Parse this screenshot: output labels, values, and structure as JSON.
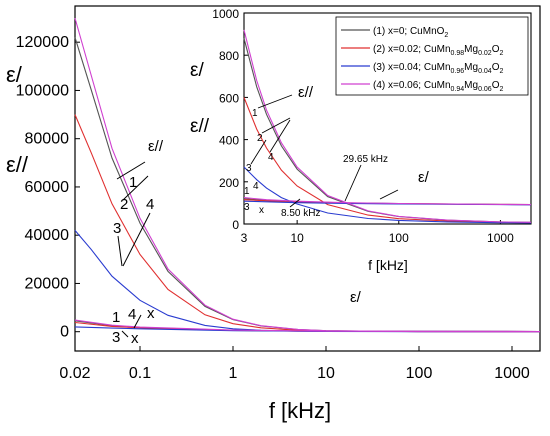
{
  "chart_data": [
    {
      "type": "line",
      "scale": {
        "x": "log",
        "y": "linear"
      },
      "xlabel": "f [kHz]",
      "ylabel_top": "ε/",
      "ylabel_bottom": "ε//",
      "xlim": [
        0.02,
        2000
      ],
      "ylim": [
        -8000,
        135000
      ],
      "xticks": [
        0.02,
        0.1,
        1,
        10,
        100,
        1000
      ],
      "xtick_labels": [
        "0.02",
        "0.1",
        "1",
        "10",
        "100",
        "1000"
      ],
      "yticks": [
        0,
        20000,
        40000,
        60000,
        80000,
        100000,
        120000
      ],
      "ytick_labels": [
        "0",
        "20000",
        "40000",
        "60000",
        "80000",
        "100000",
        "120000"
      ],
      "series": [
        {
          "name": "(1) x=0; CuMnO2",
          "color": "#555555",
          "eps2": {
            "x": [
              0.02,
              0.03,
              0.05,
              0.1,
              0.2,
              0.5,
              1,
              2,
              5,
              10,
              100,
              2000
            ],
            "y": [
              122000,
              100000,
              72000,
              45000,
              25000,
              10500,
              5000,
              2400,
              900,
              400,
              40,
              0
            ]
          },
          "eps1": {
            "x": [
              0.02,
              0.05,
              0.1,
              1,
              10,
              2000
            ],
            "y": [
              4500,
              2500,
              1800,
              600,
              200,
              100
            ]
          }
        },
        {
          "name": "(2) x=0.02; CuMn0.98Mg0.02O2",
          "color": "#e03030",
          "eps2": {
            "x": [
              0.02,
              0.03,
              0.05,
              0.1,
              0.2,
              0.5,
              1,
              2,
              5,
              10,
              100,
              2000
            ],
            "y": [
              90000,
              74000,
              53000,
              32000,
              17500,
              7000,
              3300,
              1600,
              600,
              280,
              30,
              0
            ]
          },
          "eps1": {
            "x": [
              0.02,
              0.05,
              0.1,
              1,
              10,
              2000
            ],
            "y": [
              3800,
              2200,
              1600,
              500,
              180,
              100
            ]
          }
        },
        {
          "name": "(3) x=0.04; CuMn0.96Mg0.04O2",
          "color": "#2a3cd0",
          "eps2": {
            "x": [
              0.02,
              0.03,
              0.05,
              0.1,
              0.2,
              0.5,
              1,
              2,
              5,
              10,
              100,
              2000
            ],
            "y": [
              42000,
              34000,
              23000,
              13000,
              6800,
              2600,
              1200,
              560,
              220,
              110,
              15,
              0
            ]
          },
          "eps1": {
            "x": [
              0.02,
              0.05,
              0.1,
              1,
              10,
              2000
            ],
            "y": [
              2000,
              1500,
              1200,
              400,
              150,
              100
            ]
          }
        },
        {
          "name": "(4) x=0.06; CuMn0.94Mg0.06O2",
          "color": "#d040d0",
          "eps2": {
            "x": [
              0.02,
              0.03,
              0.05,
              0.1,
              0.2,
              0.5,
              1,
              2,
              5,
              10,
              100,
              2000
            ],
            "y": [
              130000,
              106000,
              76000,
              47000,
              26000,
              11000,
              5200,
              2500,
              950,
              420,
              45,
              0
            ]
          },
          "eps1": {
            "x": [
              0.02,
              0.05,
              0.1,
              1,
              10,
              2000
            ],
            "y": [
              4800,
              2700,
              1900,
              650,
              220,
              100
            ]
          }
        }
      ],
      "annotations": {
        "eps2_curve_label": "ε//",
        "eps1_curve_label": "ε/",
        "eps2_numbers": [
          "1",
          "2",
          "3",
          "4"
        ],
        "eps1_numbers": [
          "1",
          "3",
          "4"
        ],
        "x_marker": "x"
      }
    },
    {
      "type": "line",
      "role": "inset",
      "scale": {
        "x": "log",
        "y": "linear"
      },
      "xlabel": "f [kHz]",
      "ylabel_top": "ε/",
      "ylabel_bottom": "ε//",
      "xlim": [
        3,
        2000
      ],
      "ylim": [
        0,
        1000
      ],
      "xticks": [
        3,
        10,
        100,
        1000
      ],
      "xtick_labels": [
        "3",
        "10",
        "100",
        "1000"
      ],
      "yticks": [
        0,
        200,
        400,
        600,
        800,
        1000
      ],
      "ytick_labels": [
        "0",
        "200",
        "400",
        "600",
        "800",
        "1000"
      ],
      "series": [
        {
          "name": "(1) x=0; CuMnO2",
          "color": "#555555",
          "eps2": {
            "x": [
              3,
              4,
              5,
              7,
              10,
              20,
              50,
              100,
              300,
              1000,
              2000
            ],
            "y": [
              880,
              650,
              520,
              370,
              260,
              130,
              60,
              35,
              18,
              10,
              8
            ]
          },
          "eps1": {
            "x": [
              3,
              5,
              10,
              30,
              100,
              1000,
              2000
            ],
            "y": [
              120,
              112,
              106,
              100,
              97,
              93,
              92
            ]
          }
        },
        {
          "name": "(2) x=0.02; CuMn0.98Mg0.02O2",
          "color": "#e03030",
          "eps2": {
            "x": [
              3,
              4,
              5,
              7,
              10,
              20,
              50,
              100,
              300,
              1000,
              2000
            ],
            "y": [
              600,
              450,
              360,
              255,
              180,
              92,
              42,
              25,
              14,
              8,
              6
            ]
          },
          "eps1": {
            "x": [
              3,
              5,
              10,
              30,
              100,
              1000,
              2000
            ],
            "y": [
              115,
              110,
              104,
              99,
              96,
              93,
              92
            ]
          }
        },
        {
          "name": "(3) x=0.04; CuMn0.96Mg0.04O2",
          "color": "#2a3cd0",
          "eps2": {
            "x": [
              3,
              4,
              5,
              7,
              10,
              20,
              50,
              100,
              300,
              1000,
              2000
            ],
            "y": [
              270,
              210,
              170,
              125,
              95,
              52,
              26,
              17,
              10,
              6,
              5
            ]
          },
          "eps1": {
            "x": [
              3,
              5,
              10,
              30,
              100,
              1000,
              2000
            ],
            "y": [
              108,
              105,
              101,
              97,
              95,
              92,
              91
            ]
          }
        },
        {
          "name": "(4) x=0.06; CuMn0.94Mg0.06O2",
          "color": "#d040d0",
          "eps2": {
            "x": [
              3,
              4,
              5,
              7,
              10,
              20,
              50,
              100,
              300,
              1000,
              2000
            ],
            "y": [
              920,
              680,
              540,
              385,
              270,
              135,
              62,
              36,
              19,
              10,
              8
            ]
          },
          "eps1": {
            "x": [
              3,
              5,
              10,
              30,
              100,
              1000,
              2000
            ],
            "y": [
              125,
              115,
              108,
              101,
              97,
              93,
              92
            ]
          }
        }
      ],
      "annotations": {
        "eps2_curve_label": "ε//",
        "eps1_curve_label": "ε/",
        "freq_label_1": "29.65 kHz",
        "freq_label_2": "8.50 kHz",
        "eps2_numbers": [
          "1",
          "2",
          "3",
          "4"
        ],
        "eps1_numbers": [
          "1",
          "4",
          "3"
        ],
        "x_marker": "x"
      }
    }
  ],
  "legend": {
    "placement": "inset top-right",
    "entries": [
      {
        "prefix": "(1) x=0; CuMnO",
        "sub1": "2"
      },
      {
        "prefix": "(2) x=0.02; CuMn",
        "sub1": "0.98",
        "mid1": "Mg",
        "sub2": "0.02",
        "mid2": "O",
        "sub3": "2"
      },
      {
        "prefix": "(3) x=0.04; CuMn",
        "sub1": "0.96",
        "mid1": "Mg",
        "sub2": "0.04",
        "mid2": "O",
        "sub3": "2"
      },
      {
        "prefix": "(4) x=0.06; CuMn",
        "sub1": "0.94",
        "mid1": "Mg",
        "sub2": "0.06",
        "mid2": "O",
        "sub3": "2"
      }
    ]
  }
}
